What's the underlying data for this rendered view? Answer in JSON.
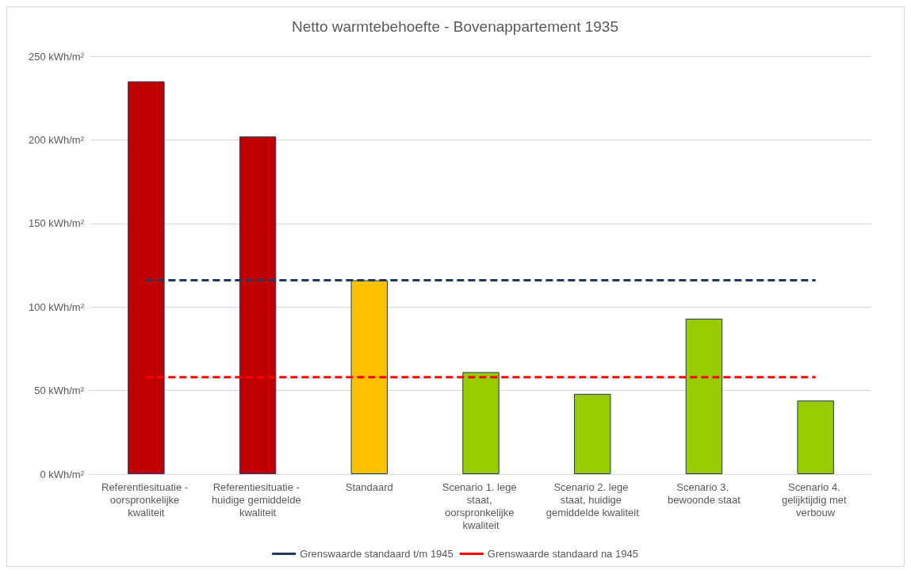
{
  "chart_data": {
    "type": "bar",
    "title": "Netto warmtebehoefte - Bovenappartement 1935",
    "categories": [
      "Referentiesituatie - oorspronkelijke kwaliteit",
      "Referentiesituatie - huidige gemiddelde kwaliteit",
      "Standaard",
      "Scenario 1. lege staat, oorspronkelijke kwaliteit",
      "Scenario 2. lege staat, huidige gemiddelde kwaliteit",
      "Scenario 3. bewoonde staat",
      "Scenario 4. gelijktijdig met verbouw"
    ],
    "series": [
      {
        "colors": [
          "#c00000",
          "#c00000",
          "#ffc000",
          "#99cc00",
          "#99cc00",
          "#99cc00",
          "#99cc00"
        ],
        "values": [
          235,
          202,
          116,
          61,
          48,
          93,
          44
        ]
      },
      {
        "type": "line",
        "name": "Grenswaarde standaard t/m 1945",
        "color": "#1f3864",
        "line_style": "dashed",
        "values": [
          116,
          116,
          116,
          116,
          116,
          116,
          116
        ]
      },
      {
        "type": "line",
        "name": "Grenswaarde standaard na 1945",
        "color": "#ff0000",
        "line_style": "dashed",
        "values": [
          58,
          58,
          58,
          58,
          58,
          58,
          58
        ]
      }
    ],
    "ylim": [
      0,
      250
    ],
    "yticks": [
      {
        "value": 0,
        "label": "0 kWh/m²"
      },
      {
        "value": 50,
        "label": "50 kWh/m²"
      },
      {
        "value": 100,
        "label": "100 kWh/m²"
      },
      {
        "value": 150,
        "label": "150 kWh/m²"
      },
      {
        "value": 200,
        "label": "200 kWh/m²"
      },
      {
        "value": 250,
        "label": "250 kWh/m²"
      }
    ],
    "grid": "y",
    "legend": "bottom",
    "marker": "none"
  }
}
